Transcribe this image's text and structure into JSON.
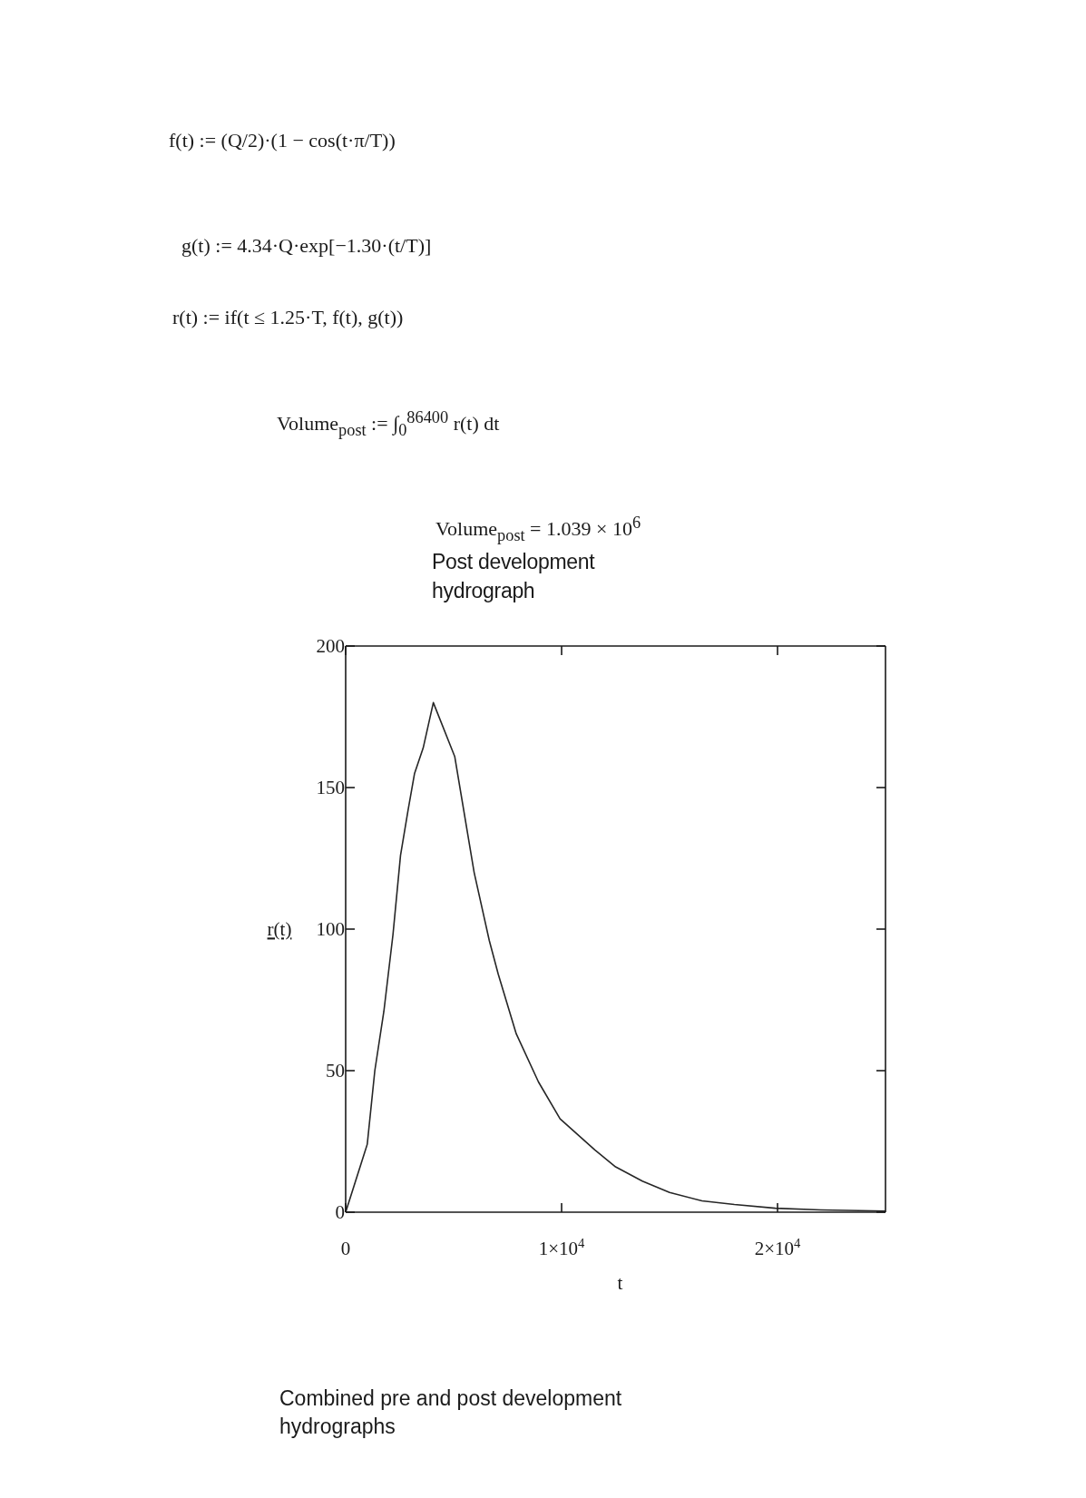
{
  "chart_data": {
    "type": "line",
    "title": "Post development hydrograph",
    "xlabel": "t",
    "ylabel": "r(t)",
    "annotations": [
      "f(t) := (Q/2)·(1 − cos(t·π/T))",
      "g(t) := 4.34·Q·exp[−1.30·(t/T)]",
      "r(t) := if(t ≤ 1.25·T, f(t), g(t))",
      "Volume$_{post}$ := ∫$_{0}$$^{86400}$ r(t) dt",
      "Volume$_{post}$ = 1.039 × 10$^{6}$",
      "Combined pre and post development hydrographs"
    ],
    "x": [
      0,
      1000,
      1350,
      1770,
      2190,
      2540,
      2890,
      3190,
      3590,
      4060,
      5050,
      5950,
      6650,
      7070,
      7900,
      8930,
      9930,
      11540,
      12500,
      13740,
      15000,
      16500,
      18000,
      19900,
      22000,
      25000
    ],
    "values": [
      0,
      24,
      50,
      71,
      98,
      126,
      142,
      155,
      164,
      180,
      161,
      120,
      96,
      84,
      63,
      46,
      33,
      22,
      16,
      11,
      7,
      4,
      2.7,
      1.4,
      0.8,
      0.4
    ],
    "color": "#262626",
    "xlim": [
      0,
      25000
    ],
    "xticks": [
      0,
      {
        "value": 10000,
        "label": "1×10$^{4}$"
      },
      {
        "value": 20000,
        "label": "2×10$^{4}$"
      }
    ],
    "ylim": [
      0,
      200
    ],
    "yticks": [
      0,
      50,
      100,
      150,
      200
    ]
  }
}
